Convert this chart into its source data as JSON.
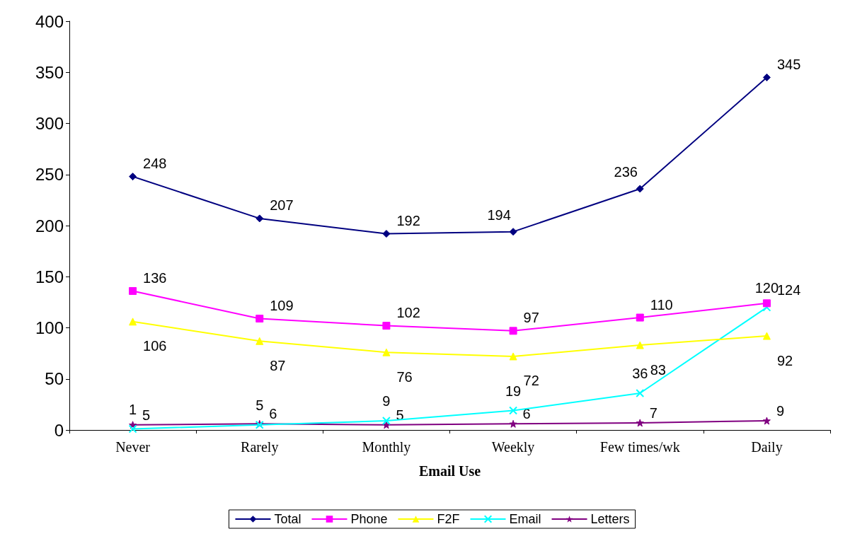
{
  "chart_data": {
    "type": "line",
    "xlabel": "Email Use",
    "categories": [
      "Never",
      "Rarely",
      "Monthly",
      "Weekly",
      "Few times/wk",
      "Daily"
    ],
    "series": [
      {
        "name": "Total",
        "color": "#000080",
        "marker": "diamond",
        "values": [
          248,
          207,
          192,
          194,
          236,
          345
        ]
      },
      {
        "name": "Phone",
        "color": "#ff00ff",
        "marker": "square",
        "values": [
          136,
          109,
          102,
          97,
          110,
          124
        ]
      },
      {
        "name": "F2F",
        "color": "#ffff00",
        "marker": "triangle",
        "values": [
          106,
          87,
          76,
          72,
          83,
          92
        ]
      },
      {
        "name": "Email",
        "color": "#00ffff",
        "marker": "cross",
        "values": [
          1,
          5,
          9,
          19,
          36,
          120
        ]
      },
      {
        "name": "Letters",
        "color": "#800080",
        "marker": "star",
        "values": [
          5,
          6,
          5,
          6,
          7,
          9
        ]
      }
    ],
    "ylim": [
      0,
      400
    ],
    "yticks": [
      0,
      50,
      100,
      150,
      200,
      250,
      300,
      350,
      400
    ],
    "grid": false,
    "legend": "bottom",
    "data_labels": true
  }
}
